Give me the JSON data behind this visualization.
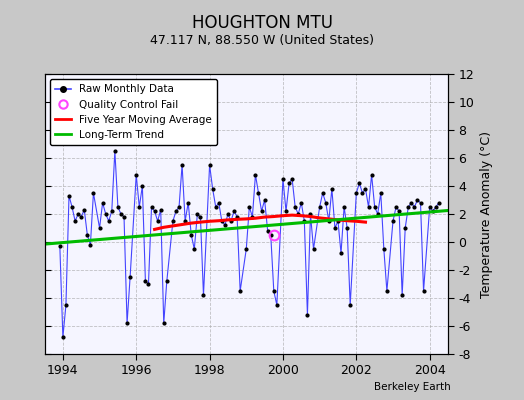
{
  "title": "HOUGHTON MTU",
  "subtitle": "47.117 N, 88.550 W (United States)",
  "ylabel": "Temperature Anomaly (°C)",
  "watermark": "Berkeley Earth",
  "xlim": [
    1993.5,
    2004.5
  ],
  "ylim": [
    -8,
    12
  ],
  "yticks": [
    -8,
    -6,
    -4,
    -2,
    0,
    2,
    4,
    6,
    8,
    10,
    12
  ],
  "xticks": [
    1994,
    1996,
    1998,
    2000,
    2002,
    2004
  ],
  "fig_bg_color": "#c8c8c8",
  "plot_bg_color": "#f5f5ff",
  "raw_color": "#4444ff",
  "moving_avg_color": "#ff0000",
  "trend_color": "#00bb00",
  "qc_fail_color": "#ff44ff",
  "raw_x": [
    1993.917,
    1994.0,
    1994.083,
    1994.167,
    1994.25,
    1994.333,
    1994.417,
    1994.5,
    1994.583,
    1994.667,
    1994.75,
    1994.833,
    1995.0,
    1995.083,
    1995.167,
    1995.25,
    1995.333,
    1995.417,
    1995.5,
    1995.583,
    1995.667,
    1995.75,
    1995.833,
    1996.0,
    1996.083,
    1996.167,
    1996.25,
    1996.333,
    1996.417,
    1996.5,
    1996.583,
    1996.667,
    1996.75,
    1996.833,
    1997.0,
    1997.083,
    1997.167,
    1997.25,
    1997.333,
    1997.417,
    1997.5,
    1997.583,
    1997.667,
    1997.75,
    1997.833,
    1998.0,
    1998.083,
    1998.167,
    1998.25,
    1998.333,
    1998.417,
    1998.5,
    1998.583,
    1998.667,
    1998.75,
    1998.833,
    1999.0,
    1999.083,
    1999.167,
    1999.25,
    1999.333,
    1999.417,
    1999.5,
    1999.583,
    1999.667,
    1999.75,
    1999.833,
    2000.0,
    2000.083,
    2000.167,
    2000.25,
    2000.333,
    2000.417,
    2000.5,
    2000.583,
    2000.667,
    2000.75,
    2000.833,
    2001.0,
    2001.083,
    2001.167,
    2001.25,
    2001.333,
    2001.417,
    2001.5,
    2001.583,
    2001.667,
    2001.75,
    2001.833,
    2002.0,
    2002.083,
    2002.167,
    2002.25,
    2002.333,
    2002.417,
    2002.5,
    2002.583,
    2002.667,
    2002.75,
    2002.833,
    2003.0,
    2003.083,
    2003.167,
    2003.25,
    2003.333,
    2003.417,
    2003.5,
    2003.583,
    2003.667,
    2003.75,
    2003.833,
    2004.0,
    2004.083,
    2004.167,
    2004.25
  ],
  "raw_y": [
    -0.3,
    -6.8,
    -4.5,
    3.3,
    2.5,
    1.5,
    2.0,
    1.8,
    2.3,
    0.5,
    -0.2,
    3.5,
    1.0,
    2.8,
    2.0,
    1.5,
    2.2,
    6.5,
    2.5,
    2.0,
    1.8,
    -5.8,
    -2.5,
    4.8,
    2.5,
    4.0,
    -2.8,
    -3.0,
    2.5,
    2.2,
    1.5,
    2.3,
    -5.8,
    -2.8,
    1.5,
    2.2,
    2.5,
    5.5,
    1.5,
    2.8,
    0.5,
    -0.5,
    2.0,
    1.8,
    -3.8,
    5.5,
    3.8,
    2.5,
    2.8,
    1.5,
    1.2,
    2.0,
    1.5,
    2.2,
    1.8,
    -3.5,
    -0.5,
    2.5,
    1.8,
    4.8,
    3.5,
    2.2,
    3.0,
    0.8,
    0.5,
    -3.5,
    -4.5,
    4.5,
    2.2,
    4.2,
    4.5,
    2.5,
    2.0,
    2.8,
    1.5,
    -5.2,
    2.0,
    -0.5,
    2.5,
    3.5,
    2.8,
    1.5,
    3.8,
    1.0,
    1.5,
    -0.8,
    2.5,
    1.0,
    -4.5,
    3.5,
    4.2,
    3.5,
    3.8,
    2.5,
    4.8,
    2.5,
    2.0,
    3.5,
    -0.5,
    -3.5,
    1.5,
    2.5,
    2.2,
    -3.8,
    1.0,
    2.5,
    2.8,
    2.5,
    3.0,
    2.8,
    -3.5,
    2.5,
    2.2,
    2.5,
    2.8
  ],
  "moving_avg_x": [
    1996.5,
    1996.583,
    1996.75,
    1997.0,
    1997.25,
    1997.5,
    1997.75,
    1998.0,
    1998.25,
    1998.5,
    1998.75,
    1999.0,
    1999.25,
    1999.5,
    1999.75,
    2000.0,
    2000.25,
    2000.5,
    2000.75,
    2001.0,
    2001.25,
    2001.5,
    2001.75,
    2002.0,
    2002.25
  ],
  "moving_avg_y": [
    0.9,
    0.95,
    1.05,
    1.15,
    1.25,
    1.35,
    1.42,
    1.48,
    1.52,
    1.58,
    1.62,
    1.65,
    1.7,
    1.78,
    1.82,
    1.88,
    1.92,
    1.88,
    1.82,
    1.72,
    1.65,
    1.58,
    1.52,
    1.48,
    1.42
  ],
  "trend_x": [
    1993.5,
    2004.5
  ],
  "trend_y": [
    -0.15,
    2.25
  ],
  "qc_fail_x": [
    1999.75
  ],
  "qc_fail_y": [
    0.5
  ]
}
